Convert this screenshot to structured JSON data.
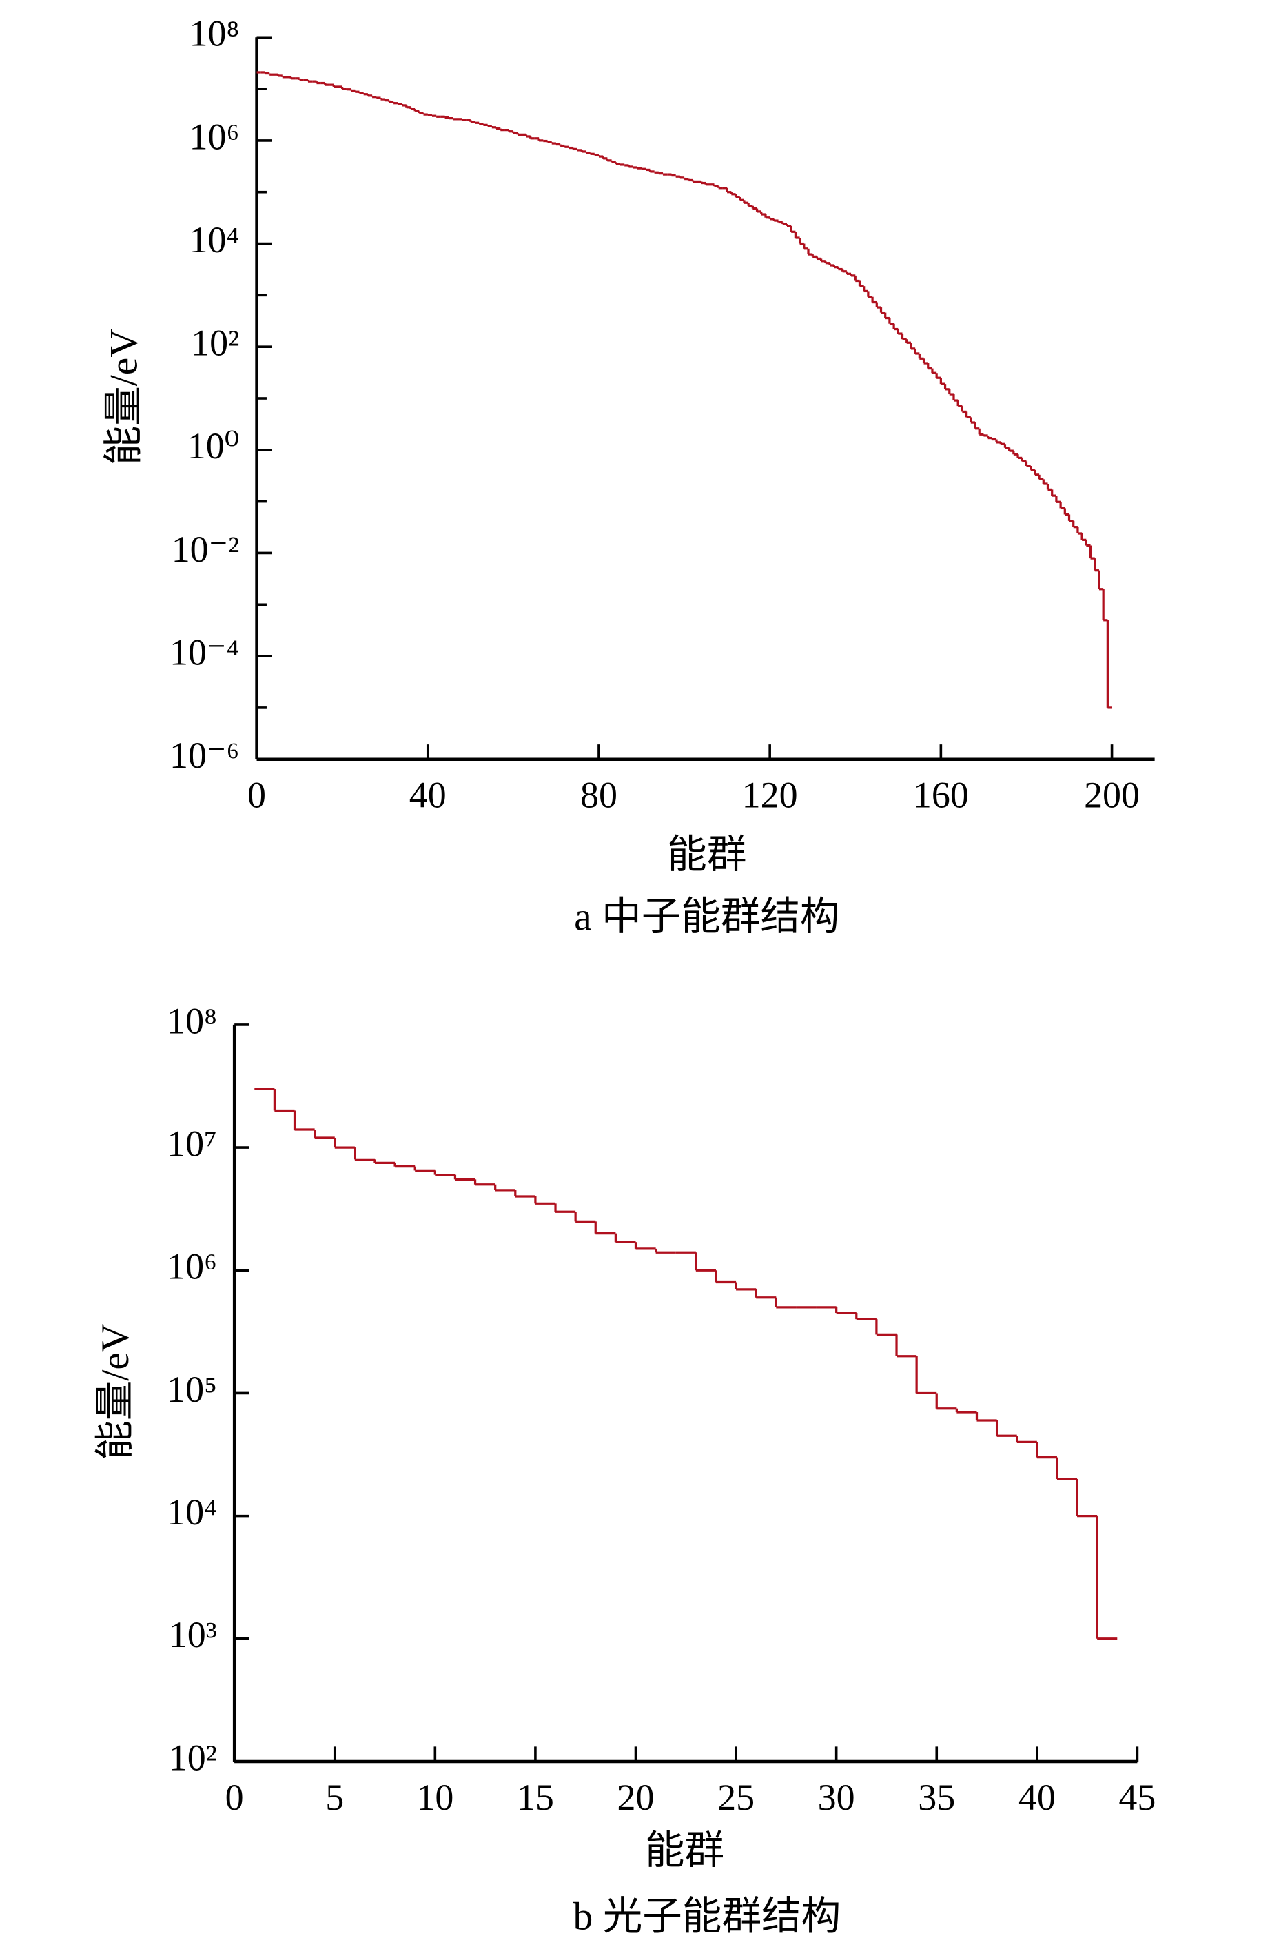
{
  "chart_data": [
    {
      "type": "step",
      "x_label": "能群",
      "y_label": "能量/eV",
      "caption": "a 中子能群结构",
      "color": "#b0101e",
      "log_y": true,
      "xlim": [
        0,
        210
      ],
      "xticks": [
        0,
        40,
        80,
        120,
        160,
        200
      ],
      "ylim": [
        1e-06,
        100000000.0
      ],
      "yticks": [
        {
          "value": 1e-06,
          "label": "10⁻⁶"
        },
        {
          "value": 0.0001,
          "label": "10⁻⁴"
        },
        {
          "value": 0.01,
          "label": "10⁻²"
        },
        {
          "value": 1,
          "label": "10⁰"
        },
        {
          "value": 100,
          "label": "10²"
        },
        {
          "value": 10000.0,
          "label": "10⁴"
        },
        {
          "value": 1000000.0,
          "label": "10⁶"
        },
        {
          "value": 100000000.0,
          "label": "10⁸"
        }
      ],
      "yminor": [
        1e-05,
        0.001,
        0.1,
        10,
        1000,
        100000.0,
        10000000.0
      ],
      "x": [
        0,
        1,
        2,
        3,
        4,
        5,
        6,
        7,
        8,
        9,
        10,
        11,
        12,
        13,
        14,
        15,
        16,
        17,
        18,
        19,
        20,
        21,
        22,
        23,
        24,
        25,
        26,
        27,
        28,
        29,
        30,
        31,
        32,
        33,
        34,
        35,
        36,
        37,
        38,
        39,
        40,
        41,
        42,
        43,
        44,
        45,
        46,
        47,
        48,
        49,
        50,
        51,
        52,
        53,
        54,
        55,
        56,
        57,
        58,
        59,
        60,
        61,
        62,
        63,
        64,
        65,
        66,
        67,
        68,
        69,
        70,
        71,
        72,
        73,
        74,
        75,
        76,
        77,
        78,
        79,
        80,
        81,
        82,
        83,
        84,
        85,
        86,
        87,
        88,
        89,
        90,
        91,
        92,
        93,
        94,
        95,
        96,
        97,
        98,
        99,
        100,
        101,
        102,
        103,
        104,
        105,
        106,
        107,
        108,
        109,
        110,
        111,
        112,
        113,
        114,
        115,
        116,
        117,
        118,
        119,
        120,
        121,
        122,
        123,
        124,
        125,
        126,
        127,
        128,
        129,
        130,
        131,
        132,
        133,
        134,
        135,
        136,
        137,
        138,
        139,
        140,
        141,
        142,
        143,
        144,
        145,
        146,
        147,
        148,
        149,
        150,
        151,
        152,
        153,
        154,
        155,
        156,
        157,
        158,
        159,
        160,
        161,
        162,
        163,
        164,
        165,
        166,
        167,
        168,
        169,
        170,
        171,
        172,
        173,
        174,
        175,
        176,
        177,
        178,
        179,
        180,
        181,
        182,
        183,
        184,
        185,
        186,
        187,
        188,
        189,
        190,
        191,
        192,
        193,
        194,
        195,
        196,
        197,
        198,
        199
      ],
      "values": [
        21000000.0,
        21000000.0,
        20000000.0,
        19000000.0,
        19000000.0,
        18000000.0,
        17000000.0,
        17000000.0,
        16000000.0,
        16000000.0,
        15000000.0,
        15000000.0,
        14000000.0,
        14000000.0,
        13000000.0,
        13000000.0,
        12000000.0,
        12000000.0,
        11000000.0,
        11000000.0,
        10000000.0,
        9800000.0,
        9300000.0,
        8800000.0,
        8300000.0,
        7900000.0,
        7400000.0,
        7000000.0,
        6700000.0,
        6300000.0,
        6000000.0,
        5600000.0,
        5300000.0,
        5100000.0,
        4800000.0,
        4400000.0,
        4100000.0,
        3700000.0,
        3400000.0,
        3200000.0,
        3100000.0,
        3000000.0,
        2900000.0,
        2900000.0,
        2800000.0,
        2700000.0,
        2600000.0,
        2600000.0,
        2500000.0,
        2500000.0,
        2300000.0,
        2200000.0,
        2100000.0,
        2000000.0,
        1900000.0,
        1800000.0,
        1700000.0,
        1600000.0,
        1600000.0,
        1500000.0,
        1400000.0,
        1300000.0,
        1300000.0,
        1200000.0,
        1100000.0,
        1100000.0,
        1000000.0,
        980000.0,
        930000.0,
        880000.0,
        840000.0,
        790000.0,
        750000.0,
        720000.0,
        680000.0,
        650000.0,
        610000.0,
        580000.0,
        550000.0,
        520000.0,
        490000.0,
        450000.0,
        410000.0,
        380000.0,
        350000.0,
        340000.0,
        330000.0,
        310000.0,
        300000.0,
        290000.0,
        280000.0,
        270000.0,
        250000.0,
        240000.0,
        230000.0,
        220000.0,
        220000.0,
        210000.0,
        200000.0,
        190000.0,
        180000.0,
        170000.0,
        160000.0,
        160000.0,
        150000.0,
        140000.0,
        140000.0,
        130000.0,
        120000.0,
        120000.0,
        100000.0,
        91000.0,
        80000.0,
        70000.0,
        62000.0,
        54000.0,
        48000.0,
        42000.0,
        37000.0,
        32000.0,
        30000.0,
        28000.0,
        26000.0,
        24000.0,
        22000.0,
        17000.0,
        13000.0,
        10000.0,
        8000.0,
        6200.0,
        5600.0,
        5100.0,
        4600.0,
        4200.0,
        3800.0,
        3500.0,
        3200.0,
        2900.0,
        2600.0,
        2400.0,
        1900.0,
        1500.0,
        1200.0,
        930,
        730,
        580,
        460,
        360,
        280,
        220,
        180,
        140,
        120,
        92,
        74,
        59,
        48,
        38,
        31,
        25,
        19,
        15,
        12,
        9.1,
        7.1,
        5.5,
        4.3,
        3.4,
        2.6,
        2.0,
        1.9,
        1.7,
        1.6,
        1.4,
        1.3,
        1.1,
        0.96,
        0.82,
        0.7,
        0.6,
        0.49,
        0.41,
        0.33,
        0.27,
        0.22,
        0.17,
        0.13,
        0.098,
        0.074,
        0.056,
        0.042,
        0.032,
        0.024,
        0.018,
        0.014,
        0.0079,
        0.0046,
        0.002,
        0.0005,
        1e-05
      ]
    },
    {
      "type": "step",
      "x_label": "能群",
      "y_label": "能量/eV",
      "caption": "b 光子能群结构",
      "color": "#b0101e",
      "log_y": true,
      "xlim": [
        0,
        45
      ],
      "xticks": [
        0,
        5,
        10,
        15,
        20,
        25,
        30,
        35,
        40,
        45
      ],
      "ylim": [
        100,
        100000000.0
      ],
      "yticks": [
        {
          "value": 100,
          "label": "10²"
        },
        {
          "value": 1000,
          "label": "10³"
        },
        {
          "value": 10000.0,
          "label": "10⁴"
        },
        {
          "value": 100000.0,
          "label": "10⁵"
        },
        {
          "value": 1000000.0,
          "label": "10⁶"
        },
        {
          "value": 10000000.0,
          "label": "10⁷"
        },
        {
          "value": 100000000.0,
          "label": "10⁸"
        }
      ],
      "x": [
        1,
        2,
        3,
        4,
        5,
        6,
        7,
        8,
        9,
        10,
        11,
        12,
        13,
        14,
        15,
        16,
        17,
        18,
        19,
        20,
        21,
        22,
        23,
        24,
        25,
        26,
        27,
        28,
        29,
        30,
        31,
        32,
        33,
        34,
        35,
        36,
        37,
        38,
        39,
        40,
        41,
        42,
        43
      ],
      "values": [
        30000000.0,
        20000000.0,
        14000000.0,
        12000000.0,
        10000000.0,
        8000000.0,
        7500000.0,
        7000000.0,
        6500000.0,
        6000000.0,
        5500000.0,
        5000000.0,
        4500000.0,
        4000000.0,
        3500000.0,
        3000000.0,
        2500000.0,
        2000000.0,
        1700000.0,
        1500000.0,
        1400000.0,
        1400000.0,
        1000000.0,
        800000.0,
        700000.0,
        600000.0,
        500000.0,
        500000.0,
        500000.0,
        450000.0,
        400000.0,
        300000.0,
        200000.0,
        100000.0,
        75000.0,
        70000.0,
        60000.0,
        45000.0,
        40000.0,
        30000.0,
        20000.0,
        10000.0,
        1000.0
      ]
    }
  ]
}
